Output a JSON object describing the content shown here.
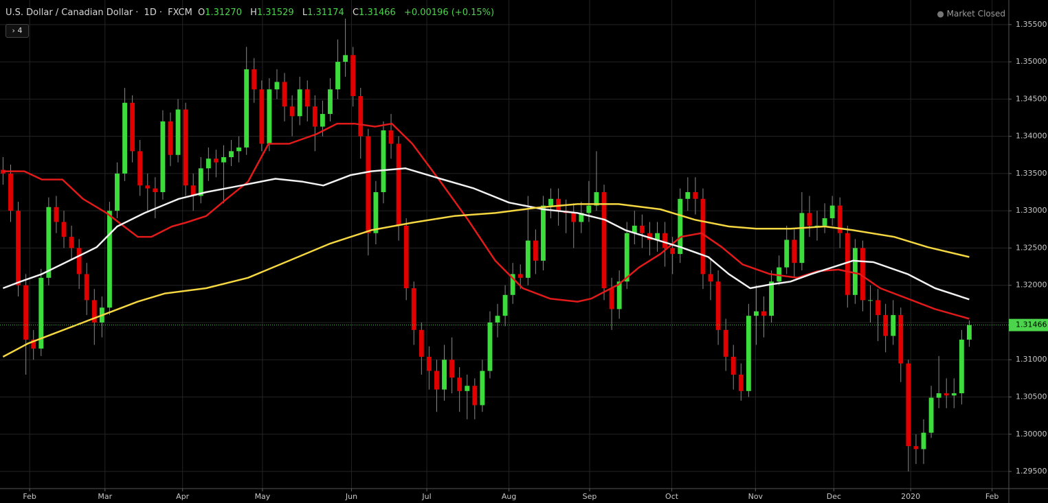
{
  "header": {
    "symbol": "U.S. Dollar / Canadian Dollar",
    "interval": "1D",
    "source": "FXCM",
    "o_label": "O",
    "open": "1.31270",
    "h_label": "H",
    "high": "1.31529",
    "l_label": "L",
    "low": "1.31174",
    "c_label": "C",
    "close": "1.31466",
    "change": "+0.00196 (+0.15%)",
    "status": "Market Closed",
    "indicators": "4"
  },
  "chart_data": {
    "type": "candlestick",
    "up_color": "#3ddc3d",
    "down_color": "#e00000",
    "wick_color": "#8a8a8a",
    "grid": true,
    "ylim": [
      1.2927,
      1.3583
    ],
    "yticks": [
      {
        "value": 1.295,
        "label": "1.29500"
      },
      {
        "value": 1.3,
        "label": "1.30000"
      },
      {
        "value": 1.305,
        "label": "1.30500"
      },
      {
        "value": 1.31,
        "label": "1.31000"
      },
      {
        "value": 1.315,
        "label": "1.31500"
      },
      {
        "value": 1.32,
        "label": "1.32000"
      },
      {
        "value": 1.325,
        "label": "1.32500"
      },
      {
        "value": 1.33,
        "label": "1.33000"
      },
      {
        "value": 1.335,
        "label": "1.33500"
      },
      {
        "value": 1.34,
        "label": "1.34000"
      },
      {
        "value": 1.345,
        "label": "1.34500"
      },
      {
        "value": 1.35,
        "label": "1.35000"
      },
      {
        "value": 1.355,
        "label": "1.35500"
      }
    ],
    "xlim": [
      -0.4,
      132.2
    ],
    "xticks": [
      {
        "value": 3.5,
        "label": "Feb"
      },
      {
        "value": 13.4,
        "label": "Mar"
      },
      {
        "value": 23.6,
        "label": "Apr"
      },
      {
        "value": 34.1,
        "label": "May"
      },
      {
        "value": 45.8,
        "label": "Jun"
      },
      {
        "value": 55.7,
        "label": "Jul"
      },
      {
        "value": 66.5,
        "label": "Aug"
      },
      {
        "value": 77.1,
        "label": "Sep"
      },
      {
        "value": 87.9,
        "label": "Oct"
      },
      {
        "value": 98.9,
        "label": "Nov"
      },
      {
        "value": 109.2,
        "label": "Dec"
      },
      {
        "value": 119.3,
        "label": "2020"
      },
      {
        "value": 130.0,
        "label": "Feb"
      }
    ],
    "last_price": {
      "value": 1.31466,
      "label": "1.31466"
    },
    "last_price_color": "#4cd44c",
    "ohlc": [
      [
        1.3355,
        1.3372,
        1.3335,
        1.335
      ],
      [
        1.335,
        1.3362,
        1.3285,
        1.33
      ],
      [
        1.33,
        1.3312,
        1.3185,
        1.32
      ],
      [
        1.32,
        1.3215,
        1.308,
        1.3127
      ],
      [
        1.3127,
        1.314,
        1.31,
        1.3115
      ],
      [
        1.3115,
        1.3222,
        1.3105,
        1.321
      ],
      [
        1.321,
        1.3318,
        1.32,
        1.3305
      ],
      [
        1.3305,
        1.332,
        1.327,
        1.3285
      ],
      [
        1.3285,
        1.33,
        1.325,
        1.3265
      ],
      [
        1.3265,
        1.328,
        1.3235,
        1.325
      ],
      [
        1.325,
        1.3262,
        1.3195,
        1.3215
      ],
      [
        1.3215,
        1.323,
        1.316,
        1.318
      ],
      [
        1.318,
        1.3195,
        1.312,
        1.315
      ],
      [
        1.315,
        1.3185,
        1.313,
        1.317
      ],
      [
        1.317,
        1.3312,
        1.316,
        1.33
      ],
      [
        1.33,
        1.3365,
        1.329,
        1.335
      ],
      [
        1.335,
        1.3465,
        1.334,
        1.3445
      ],
      [
        1.3445,
        1.3455,
        1.3365,
        1.338
      ],
      [
        1.338,
        1.3395,
        1.332,
        1.3334
      ],
      [
        1.3334,
        1.335,
        1.33,
        1.333
      ],
      [
        1.333,
        1.3345,
        1.329,
        1.3325
      ],
      [
        1.3325,
        1.3435,
        1.3315,
        1.342
      ],
      [
        1.342,
        1.3432,
        1.336,
        1.3375
      ],
      [
        1.3375,
        1.345,
        1.3365,
        1.3436
      ],
      [
        1.3436,
        1.3445,
        1.332,
        1.3334
      ],
      [
        1.3334,
        1.335,
        1.33,
        1.332
      ],
      [
        1.332,
        1.3372,
        1.331,
        1.3357
      ],
      [
        1.3357,
        1.3385,
        1.334,
        1.337
      ],
      [
        1.337,
        1.3382,
        1.3345,
        1.3365
      ],
      [
        1.3365,
        1.3388,
        1.331,
        1.3372
      ],
      [
        1.3372,
        1.3395,
        1.336,
        1.338
      ],
      [
        1.338,
        1.34,
        1.3365,
        1.3385
      ],
      [
        1.3385,
        1.352,
        1.3375,
        1.349
      ],
      [
        1.349,
        1.3505,
        1.3445,
        1.3463
      ],
      [
        1.3463,
        1.3475,
        1.338,
        1.339
      ],
      [
        1.339,
        1.3478,
        1.338,
        1.3463
      ],
      [
        1.3463,
        1.349,
        1.345,
        1.3473
      ],
      [
        1.3473,
        1.3485,
        1.342,
        1.344
      ],
      [
        1.344,
        1.3455,
        1.34,
        1.3427
      ],
      [
        1.3427,
        1.348,
        1.3415,
        1.3463
      ],
      [
        1.3463,
        1.3475,
        1.342,
        1.344
      ],
      [
        1.344,
        1.3455,
        1.338,
        1.3413
      ],
      [
        1.3413,
        1.3448,
        1.34,
        1.343
      ],
      [
        1.343,
        1.3478,
        1.342,
        1.3463
      ],
      [
        1.3463,
        1.353,
        1.345,
        1.35
      ],
      [
        1.35,
        1.3558,
        1.348,
        1.3509
      ],
      [
        1.3509,
        1.352,
        1.344,
        1.3454
      ],
      [
        1.3454,
        1.3465,
        1.337,
        1.34
      ],
      [
        1.34,
        1.341,
        1.324,
        1.327
      ],
      [
        1.327,
        1.334,
        1.3255,
        1.3325
      ],
      [
        1.3325,
        1.342,
        1.331,
        1.3408
      ],
      [
        1.3408,
        1.343,
        1.337,
        1.339
      ],
      [
        1.339,
        1.34,
        1.326,
        1.328
      ],
      [
        1.328,
        1.329,
        1.318,
        1.3196
      ],
      [
        1.3196,
        1.3205,
        1.312,
        1.314
      ],
      [
        1.314,
        1.315,
        1.308,
        1.3104
      ],
      [
        1.3104,
        1.3118,
        1.306,
        1.3085
      ],
      [
        1.3085,
        1.31,
        1.303,
        1.306
      ],
      [
        1.306,
        1.312,
        1.3045,
        1.31
      ],
      [
        1.31,
        1.313,
        1.3055,
        1.3076
      ],
      [
        1.3076,
        1.309,
        1.303,
        1.3058
      ],
      [
        1.3058,
        1.308,
        1.302,
        1.3065
      ],
      [
        1.3065,
        1.3075,
        1.302,
        1.3039
      ],
      [
        1.3039,
        1.31,
        1.303,
        1.3085
      ],
      [
        1.3085,
        1.3165,
        1.3075,
        1.315
      ],
      [
        1.315,
        1.3175,
        1.313,
        1.3159
      ],
      [
        1.3159,
        1.32,
        1.3145,
        1.3187
      ],
      [
        1.3187,
        1.323,
        1.3175,
        1.3215
      ],
      [
        1.3215,
        1.3228,
        1.3195,
        1.321
      ],
      [
        1.321,
        1.332,
        1.32,
        1.326
      ],
      [
        1.326,
        1.3275,
        1.3215,
        1.3233
      ],
      [
        1.3233,
        1.332,
        1.322,
        1.3307
      ],
      [
        1.3307,
        1.333,
        1.329,
        1.3316
      ],
      [
        1.3316,
        1.333,
        1.328,
        1.33
      ],
      [
        1.33,
        1.3315,
        1.327,
        1.3297
      ],
      [
        1.3297,
        1.331,
        1.325,
        1.3285
      ],
      [
        1.3285,
        1.3312,
        1.327,
        1.3297
      ],
      [
        1.3297,
        1.334,
        1.3285,
        1.3307
      ],
      [
        1.3307,
        1.338,
        1.33,
        1.3325
      ],
      [
        1.3325,
        1.3335,
        1.318,
        1.3196
      ],
      [
        1.3196,
        1.321,
        1.314,
        1.3168
      ],
      [
        1.3168,
        1.322,
        1.3155,
        1.3205
      ],
      [
        1.3205,
        1.3285,
        1.3195,
        1.327
      ],
      [
        1.327,
        1.33,
        1.3255,
        1.328
      ],
      [
        1.328,
        1.3295,
        1.325,
        1.327
      ],
      [
        1.327,
        1.3285,
        1.324,
        1.3261
      ],
      [
        1.3261,
        1.3285,
        1.3245,
        1.327
      ],
      [
        1.327,
        1.3285,
        1.3225,
        1.325
      ],
      [
        1.325,
        1.3265,
        1.3215,
        1.3242
      ],
      [
        1.3242,
        1.333,
        1.323,
        1.3316
      ],
      [
        1.3316,
        1.3345,
        1.33,
        1.3325
      ],
      [
        1.3325,
        1.3345,
        1.3295,
        1.3316
      ],
      [
        1.3316,
        1.333,
        1.3195,
        1.3215
      ],
      [
        1.3215,
        1.3235,
        1.318,
        1.3205
      ],
      [
        1.3205,
        1.322,
        1.312,
        1.314
      ],
      [
        1.314,
        1.3155,
        1.3085,
        1.3104
      ],
      [
        1.3104,
        1.312,
        1.306,
        1.308
      ],
      [
        1.308,
        1.3095,
        1.3045,
        1.3058
      ],
      [
        1.3058,
        1.3175,
        1.305,
        1.3159
      ],
      [
        1.3159,
        1.32,
        1.312,
        1.3165
      ],
      [
        1.3165,
        1.3185,
        1.313,
        1.3159
      ],
      [
        1.3159,
        1.322,
        1.315,
        1.3205
      ],
      [
        1.3205,
        1.324,
        1.32,
        1.3224
      ],
      [
        1.3224,
        1.328,
        1.3215,
        1.3261
      ],
      [
        1.3261,
        1.3275,
        1.321,
        1.323
      ],
      [
        1.323,
        1.3325,
        1.322,
        1.3297
      ],
      [
        1.3297,
        1.332,
        1.3265,
        1.328
      ],
      [
        1.328,
        1.33,
        1.326,
        1.328
      ],
      [
        1.328,
        1.331,
        1.327,
        1.329
      ],
      [
        1.329,
        1.332,
        1.328,
        1.3307
      ],
      [
        1.3307,
        1.3318,
        1.325,
        1.327
      ],
      [
        1.327,
        1.328,
        1.317,
        1.3187
      ],
      [
        1.3187,
        1.3262,
        1.3175,
        1.325
      ],
      [
        1.325,
        1.326,
        1.3165,
        1.318
      ],
      [
        1.318,
        1.32,
        1.315,
        1.318
      ],
      [
        1.318,
        1.3195,
        1.3125,
        1.316
      ],
      [
        1.316,
        1.3175,
        1.311,
        1.3132
      ],
      [
        1.3132,
        1.318,
        1.312,
        1.316
      ],
      [
        1.316,
        1.317,
        1.307,
        1.3095
      ],
      [
        1.3095,
        1.31,
        1.295,
        1.2984
      ],
      [
        1.2984,
        1.3,
        1.296,
        1.298
      ],
      [
        1.298,
        1.302,
        1.296,
        1.3002
      ],
      [
        1.3002,
        1.3065,
        1.2995,
        1.3049
      ],
      [
        1.3049,
        1.3105,
        1.3035,
        1.3055
      ],
      [
        1.3055,
        1.3075,
        1.3035,
        1.3052
      ],
      [
        1.3052,
        1.3075,
        1.3035,
        1.3055
      ],
      [
        1.3055,
        1.314,
        1.304,
        1.3127
      ],
      [
        1.3127,
        1.31529,
        1.31174,
        1.31466
      ]
    ],
    "lines": [
      {
        "color": "#e31a1a",
        "x": [
          0,
          2.8,
          5.1,
          7.8,
          10.5,
          13.6,
          15.9,
          17.7,
          19.5,
          22.2,
          24,
          26.7,
          29.4,
          32.2,
          34.9,
          37.6,
          41.2,
          43.9,
          46.2,
          48.9,
          51.1,
          53.8,
          57.5,
          61.1,
          64.7,
          68.3,
          71.9,
          75.5,
          77.3,
          80.9,
          83.6,
          86.4,
          89.1,
          91.8,
          94.5,
          97.2,
          100.8,
          104.4,
          107.1,
          109.8,
          112.6,
          115.3,
          118.9,
          122.5,
          127
        ],
        "values": [
          1.3353,
          1.3353,
          1.3342,
          1.3342,
          1.3316,
          1.3297,
          1.3279,
          1.3265,
          1.3265,
          1.3279,
          1.3284,
          1.3293,
          1.3316,
          1.3339,
          1.339,
          1.339,
          1.3403,
          1.3417,
          1.3417,
          1.3413,
          1.3417,
          1.339,
          1.3339,
          1.3288,
          1.3233,
          1.3196,
          1.3182,
          1.3178,
          1.3182,
          1.3201,
          1.3224,
          1.3242,
          1.3265,
          1.327,
          1.3251,
          1.3228,
          1.3215,
          1.321,
          1.3219,
          1.3221,
          1.3215,
          1.3196,
          1.3182,
          1.3168,
          1.3155
        ]
      },
      {
        "color": "#f2f2f2",
        "x": [
          0,
          2.3,
          5.1,
          8.7,
          12.3,
          15,
          18.6,
          23.1,
          26.7,
          31.3,
          35.8,
          39.4,
          42.1,
          45.7,
          48.4,
          52.9,
          57.5,
          61.9,
          66.5,
          71,
          75.5,
          79.1,
          81.8,
          84.6,
          89.1,
          92.7,
          95.4,
          98.2,
          100.8,
          103.5,
          106.2,
          109,
          111.7,
          114.4,
          118.9,
          122.5,
          127
        ],
        "values": [
          1.3196,
          1.3205,
          1.3215,
          1.3233,
          1.3251,
          1.3279,
          1.3297,
          1.3316,
          1.3325,
          1.3334,
          1.3343,
          1.3339,
          1.3334,
          1.3348,
          1.3353,
          1.3357,
          1.3343,
          1.333,
          1.3311,
          1.3302,
          1.3297,
          1.3288,
          1.3274,
          1.3265,
          1.3251,
          1.3238,
          1.3215,
          1.3196,
          1.3201,
          1.3205,
          1.3215,
          1.3224,
          1.3233,
          1.3231,
          1.3215,
          1.3196,
          1.3181
        ]
      },
      {
        "color": "#f5d742",
        "x": [
          0,
          3.3,
          6.9,
          10.5,
          14.1,
          17.7,
          21.3,
          26.7,
          32.2,
          37.6,
          43,
          48.4,
          53.8,
          59.3,
          64.7,
          70.1,
          75.5,
          80.9,
          86.4,
          90.9,
          95.4,
          99,
          103.5,
          108,
          111.7,
          117.1,
          121.6,
          127
        ],
        "values": [
          1.3104,
          1.3122,
          1.3136,
          1.315,
          1.3164,
          1.3178,
          1.3189,
          1.3196,
          1.321,
          1.3233,
          1.3256,
          1.3274,
          1.3284,
          1.3293,
          1.3297,
          1.3304,
          1.3309,
          1.3309,
          1.3302,
          1.3288,
          1.3279,
          1.3276,
          1.3276,
          1.3279,
          1.3274,
          1.3265,
          1.3251,
          1.3238
        ]
      }
    ]
  }
}
